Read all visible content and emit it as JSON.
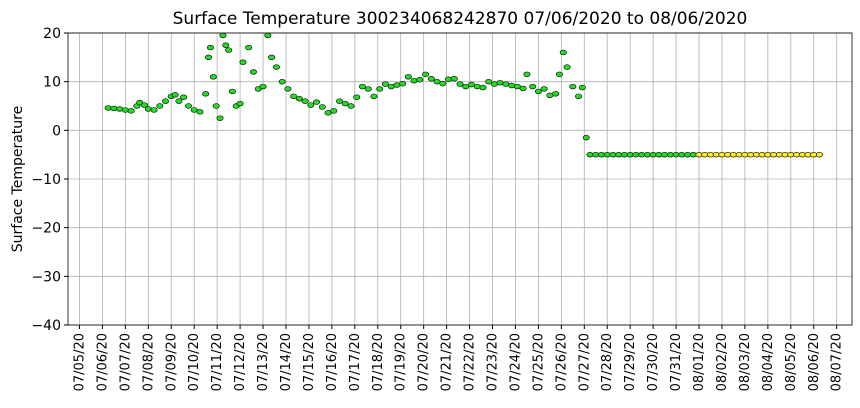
{
  "chart_data": {
    "type": "scatter",
    "title": "Surface Temperature 300234068242870  07/06/2020 to 08/06/2020",
    "ylabel": "Surface Temperature",
    "ylim": [
      -40,
      20
    ],
    "yticks": [
      {
        "value": -40,
        "label": "−40"
      },
      {
        "value": -30,
        "label": "−30"
      },
      {
        "value": -20,
        "label": "−20"
      },
      {
        "value": -10,
        "label": "−10"
      },
      0,
      10,
      20
    ],
    "xlim": [
      "2020-07-04T12:00",
      "2020-08-07T16:00"
    ],
    "xticks": [
      {
        "value": "2020-07-05T00:00",
        "label": "07/05/20"
      },
      {
        "value": "2020-07-06T00:00",
        "label": "07/06/20"
      },
      {
        "value": "2020-07-07T00:00",
        "label": "07/07/20"
      },
      {
        "value": "2020-07-08T00:00",
        "label": "07/08/20"
      },
      {
        "value": "2020-07-09T00:00",
        "label": "07/09/20"
      },
      {
        "value": "2020-07-10T00:00",
        "label": "07/10/20"
      },
      {
        "value": "2020-07-11T00:00",
        "label": "07/11/20"
      },
      {
        "value": "2020-07-12T00:00",
        "label": "07/12/20"
      },
      {
        "value": "2020-07-13T00:00",
        "label": "07/13/20"
      },
      {
        "value": "2020-07-14T00:00",
        "label": "07/14/20"
      },
      {
        "value": "2020-07-15T00:00",
        "label": "07/15/20"
      },
      {
        "value": "2020-07-16T00:00",
        "label": "07/16/20"
      },
      {
        "value": "2020-07-17T00:00",
        "label": "07/17/20"
      },
      {
        "value": "2020-07-18T00:00",
        "label": "07/18/20"
      },
      {
        "value": "2020-07-19T00:00",
        "label": "07/19/20"
      },
      {
        "value": "2020-07-20T00:00",
        "label": "07/20/20"
      },
      {
        "value": "2020-07-21T00:00",
        "label": "07/21/20"
      },
      {
        "value": "2020-07-22T00:00",
        "label": "07/22/20"
      },
      {
        "value": "2020-07-23T00:00",
        "label": "07/23/20"
      },
      {
        "value": "2020-07-24T00:00",
        "label": "07/24/20"
      },
      {
        "value": "2020-07-25T00:00",
        "label": "07/25/20"
      },
      {
        "value": "2020-07-26T00:00",
        "label": "07/26/20"
      },
      {
        "value": "2020-07-27T00:00",
        "label": "07/27/20"
      },
      {
        "value": "2020-07-28T00:00",
        "label": "07/28/20"
      },
      {
        "value": "2020-07-29T00:00",
        "label": "07/29/20"
      },
      {
        "value": "2020-07-30T00:00",
        "label": "07/30/20"
      },
      {
        "value": "2020-07-31T00:00",
        "label": "07/31/20"
      },
      {
        "value": "2020-08-01T00:00",
        "label": "08/01/20"
      },
      {
        "value": "2020-08-02T00:00",
        "label": "08/02/20"
      },
      {
        "value": "2020-08-03T00:00",
        "label": "08/03/20"
      },
      {
        "value": "2020-08-04T00:00",
        "label": "08/04/20"
      },
      {
        "value": "2020-08-05T00:00",
        "label": "08/05/20"
      },
      {
        "value": "2020-08-06T00:00",
        "label": "08/06/20"
      },
      {
        "value": "2020-08-07T00:00",
        "label": "08/07/20"
      }
    ],
    "grid": true,
    "series": [
      {
        "color": "#22dd22",
        "x": [
          "2020-07-06T06:00",
          "2020-07-06T12:00",
          "2020-07-06T18:00",
          "2020-07-07T00:00",
          "2020-07-07T06:00",
          "2020-07-07T12:00",
          "2020-07-07T15:00",
          "2020-07-07T20:00",
          "2020-07-08T00:00",
          "2020-07-08T06:00",
          "2020-07-08T12:00",
          "2020-07-08T18:00",
          "2020-07-09T00:00",
          "2020-07-09T04:00",
          "2020-07-09T08:00",
          "2020-07-09T13:00",
          "2020-07-09T18:00",
          "2020-07-10T00:00",
          "2020-07-10T06:00",
          "2020-07-10T12:00",
          "2020-07-10T15:00",
          "2020-07-10T17:00",
          "2020-07-10T20:00",
          "2020-07-10T23:00",
          "2020-07-11T03:00",
          "2020-07-11T06:00",
          "2020-07-11T09:00",
          "2020-07-11T12:00",
          "2020-07-11T16:00",
          "2020-07-11T20:00",
          "2020-07-12T00:00",
          "2020-07-12T03:00",
          "2020-07-12T09:00",
          "2020-07-12T14:00",
          "2020-07-12T19:00",
          "2020-07-13T00:00",
          "2020-07-13T05:00",
          "2020-07-13T09:00",
          "2020-07-13T14:00",
          "2020-07-13T20:00",
          "2020-07-14T02:00",
          "2020-07-14T08:00",
          "2020-07-14T14:00",
          "2020-07-14T20:00",
          "2020-07-15T02:00",
          "2020-07-15T08:00",
          "2020-07-15T14:00",
          "2020-07-15T20:00",
          "2020-07-16T02:00",
          "2020-07-16T08:00",
          "2020-07-16T14:00",
          "2020-07-16T20:00",
          "2020-07-17T02:00",
          "2020-07-17T08:00",
          "2020-07-17T14:00",
          "2020-07-17T20:00",
          "2020-07-18T02:00",
          "2020-07-18T08:00",
          "2020-07-18T14:00",
          "2020-07-18T20:00",
          "2020-07-19T02:00",
          "2020-07-19T08:00",
          "2020-07-19T14:00",
          "2020-07-19T20:00",
          "2020-07-20T02:00",
          "2020-07-20T08:00",
          "2020-07-20T14:00",
          "2020-07-20T20:00",
          "2020-07-21T02:00",
          "2020-07-21T08:00",
          "2020-07-21T14:00",
          "2020-07-21T20:00",
          "2020-07-22T02:00",
          "2020-07-22T08:00",
          "2020-07-22T14:00",
          "2020-07-22T20:00",
          "2020-07-23T02:00",
          "2020-07-23T08:00",
          "2020-07-23T14:00",
          "2020-07-23T20:00",
          "2020-07-24T02:00",
          "2020-07-24T08:00",
          "2020-07-24T12:00",
          "2020-07-24T18:00",
          "2020-07-25T00:00",
          "2020-07-25T06:00",
          "2020-07-25T12:00",
          "2020-07-25T18:00",
          "2020-07-25T22:00",
          "2020-07-26T02:00",
          "2020-07-26T06:00",
          "2020-07-26T12:00",
          "2020-07-26T18:00",
          "2020-07-26T22:00",
          "2020-07-27T02:00",
          "2020-07-27T06:00",
          "2020-07-27T12:00",
          "2020-07-27T18:00",
          "2020-07-28T00:00",
          "2020-07-28T06:00",
          "2020-07-28T12:00",
          "2020-07-28T18:00",
          "2020-07-29T00:00",
          "2020-07-29T06:00",
          "2020-07-29T12:00",
          "2020-07-29T18:00",
          "2020-07-30T00:00",
          "2020-07-30T06:00",
          "2020-07-30T12:00",
          "2020-07-30T18:00",
          "2020-07-31T00:00",
          "2020-07-31T06:00",
          "2020-07-31T12:00",
          "2020-07-31T18:00"
        ],
        "values": [
          4.6,
          4.5,
          4.4,
          4.2,
          4.0,
          5.0,
          5.7,
          5.2,
          4.4,
          4.2,
          5.0,
          6.0,
          7.0,
          7.3,
          6.0,
          6.8,
          5.0,
          4.2,
          3.8,
          7.5,
          15.0,
          17.0,
          11.0,
          5.0,
          2.5,
          19.5,
          17.5,
          16.5,
          8.0,
          5.0,
          5.5,
          14.0,
          17.0,
          12.0,
          8.5,
          9.0,
          19.5,
          15.0,
          13.0,
          10.0,
          8.5,
          7.0,
          6.5,
          6.0,
          5.2,
          5.8,
          4.8,
          3.6,
          4.0,
          6.0,
          5.5,
          5.0,
          6.8,
          9.0,
          8.5,
          7.0,
          8.5,
          9.5,
          9.0,
          9.3,
          9.6,
          11.0,
          10.2,
          10.4,
          11.5,
          10.6,
          10.0,
          9.6,
          10.5,
          10.6,
          9.5,
          9.0,
          9.4,
          9.0,
          8.8,
          10.0,
          9.5,
          9.8,
          9.5,
          9.2,
          9.0,
          8.6,
          11.5,
          9.0,
          8.0,
          8.5,
          7.2,
          7.5,
          11.5,
          16.0,
          13.0,
          9.0,
          7.0,
          8.8,
          -1.5,
          -5,
          -5,
          -5,
          -5,
          -5,
          -5,
          -5,
          -5,
          -5,
          -5,
          -5,
          -5,
          -5,
          -5,
          -5,
          -5,
          -5,
          -5,
          -5
        ]
      },
      {
        "color": "#ffee22",
        "x": [
          "2020-08-01T00:00",
          "2020-08-01T06:00",
          "2020-08-01T12:00",
          "2020-08-01T18:00",
          "2020-08-02T00:00",
          "2020-08-02T06:00",
          "2020-08-02T12:00",
          "2020-08-02T18:00",
          "2020-08-03T00:00",
          "2020-08-03T06:00",
          "2020-08-03T12:00",
          "2020-08-03T18:00",
          "2020-08-04T00:00",
          "2020-08-04T06:00",
          "2020-08-04T12:00",
          "2020-08-04T18:00",
          "2020-08-05T00:00",
          "2020-08-05T06:00",
          "2020-08-05T12:00",
          "2020-08-05T18:00",
          "2020-08-06T00:00",
          "2020-08-06T06:00"
        ],
        "values": [
          -5,
          -5,
          -5,
          -5,
          -5,
          -5,
          -5,
          -5,
          -5,
          -5,
          -5,
          -5,
          -5,
          -5,
          -5,
          -5,
          -5,
          -5,
          -5,
          -5,
          -5,
          -5
        ]
      }
    ]
  }
}
